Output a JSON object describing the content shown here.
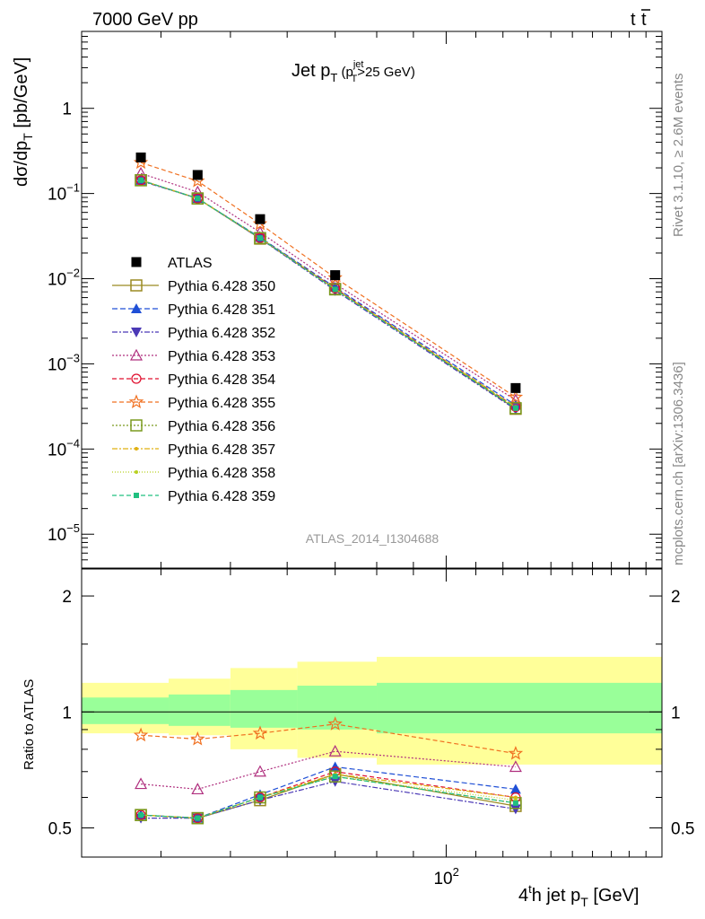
{
  "header": {
    "left": "7000 GeV pp",
    "right_main": "t",
    "right_bar": "t"
  },
  "side_labels": {
    "rivet": "Rivet 3.1.10, ≥ 2.6M events",
    "mcplots": "mcplots.cern.ch [arXiv:1306.3436]"
  },
  "analysis_id": "ATLAS_2014_I1304688",
  "colors": {
    "data": "#000000",
    "band_inner": "#99ff99",
    "band_outer": "#ffff99"
  },
  "chart_data": [
    {
      "type": "scatter",
      "panel": "main",
      "title": {
        "main": "Jet p",
        "sub": "T",
        "paren_open": " (p",
        "sup": "jet",
        "sub2": "T",
        "cut": ">25 GeV)"
      },
      "ylabel": {
        "main": "dσ/dp",
        "sub": "T",
        "unit": " [pb/GeV]"
      },
      "yscale": "log",
      "ylim": [
        4e-06,
        8
      ],
      "xscale": "log",
      "xlim": [
        31,
        200
      ],
      "yticks": [
        {
          "value": 1,
          "label": "1"
        },
        {
          "value": 0.1,
          "label": "10",
          "exp": "−1"
        },
        {
          "value": 0.01,
          "label": "10",
          "exp": "−2"
        },
        {
          "value": 0.001,
          "label": "10",
          "exp": "−3"
        },
        {
          "value": 0.0001,
          "label": "10",
          "exp": "−4"
        },
        {
          "value": 1e-05,
          "label": "10",
          "exp": "−5"
        }
      ],
      "x": [
        37.5,
        45,
        55,
        70,
        125
      ],
      "data": {
        "name": "ATLAS",
        "values": [
          0.265,
          0.165,
          0.05,
          0.011,
          0.00052
        ]
      },
      "series": [
        {
          "name": "Pythia 6.428 350",
          "color": "#9a8a22",
          "dash": "",
          "marker": "square_open",
          "ratio": [
            0.54,
            0.53,
            0.59,
            0.69,
            0.57
          ]
        },
        {
          "name": "Pythia 6.428 351",
          "color": "#1f4fd6",
          "dash": "6,3",
          "marker": "triangle_up",
          "ratio": [
            0.54,
            0.53,
            0.61,
            0.72,
            0.63
          ]
        },
        {
          "name": "Pythia 6.428 352",
          "color": "#4b39b6",
          "dash": "6,2,2,2",
          "marker": "triangle_down",
          "ratio": [
            0.53,
            0.53,
            0.59,
            0.66,
            0.56
          ]
        },
        {
          "name": "Pythia 6.428 353",
          "color": "#b0307f",
          "dash": "2,2",
          "marker": "triangle_open",
          "ratio": [
            0.65,
            0.63,
            0.7,
            0.79,
            0.72
          ]
        },
        {
          "name": "Pythia 6.428 354",
          "color": "#e0102f",
          "dash": "5,3",
          "marker": "circle_open",
          "ratio": [
            0.54,
            0.53,
            0.6,
            0.7,
            0.6
          ]
        },
        {
          "name": "Pythia 6.428 355",
          "color": "#f07020",
          "dash": "5,3",
          "marker": "star_open",
          "ratio": [
            0.87,
            0.85,
            0.88,
            0.93,
            0.78
          ]
        },
        {
          "name": "Pythia 6.428 356",
          "color": "#7a9a1f",
          "dash": "2,2",
          "marker": "square_open",
          "ratio": [
            0.54,
            0.53,
            0.6,
            0.68,
            0.58
          ]
        },
        {
          "name": "Pythia 6.428 357",
          "color": "#e0b010",
          "dash": "6,2,2,2",
          "marker": "dot",
          "ratio": [
            0.54,
            0.53,
            0.6,
            0.69,
            0.6
          ]
        },
        {
          "name": "Pythia 6.428 358",
          "color": "#b8d020",
          "dash": "1,2",
          "marker": "dot",
          "ratio": [
            0.54,
            0.53,
            0.6,
            0.68,
            0.59
          ]
        },
        {
          "name": "Pythia 6.428 359",
          "color": "#20c080",
          "dash": "5,3",
          "marker": "square_filled",
          "ratio": [
            0.54,
            0.53,
            0.6,
            0.68,
            0.58
          ]
        }
      ]
    },
    {
      "type": "line",
      "panel": "ratio",
      "ylabel": "Ratio to ATLAS",
      "yscale": "log",
      "ylim": [
        0.42,
        2.35
      ],
      "yticks": [
        {
          "value": 2,
          "label": "2"
        },
        {
          "value": 1,
          "label": "1"
        },
        {
          "value": 0.5,
          "label": "0.5"
        }
      ],
      "xlabel": {
        "pre": "4",
        "sup": "t",
        "mid": "h jet p",
        "sub": "T",
        "unit": " [GeV]"
      },
      "xticks": [
        {
          "value": 100,
          "label": "10",
          "exp": "2"
        }
      ],
      "bands": [
        {
          "x0": 31,
          "x1": 41,
          "inner": [
            0.93,
            1.09
          ],
          "outer": [
            0.88,
            1.19
          ]
        },
        {
          "x0": 41,
          "x1": 50,
          "inner": [
            0.92,
            1.11
          ],
          "outer": [
            0.87,
            1.22
          ]
        },
        {
          "x0": 50,
          "x1": 62,
          "inner": [
            0.91,
            1.14
          ],
          "outer": [
            0.8,
            1.3
          ]
        },
        {
          "x0": 62,
          "x1": 80,
          "inner": [
            0.9,
            1.17
          ],
          "outer": [
            0.76,
            1.35
          ]
        },
        {
          "x0": 80,
          "x1": 200,
          "inner": [
            0.88,
            1.19
          ],
          "outer": [
            0.73,
            1.39
          ]
        }
      ]
    }
  ]
}
